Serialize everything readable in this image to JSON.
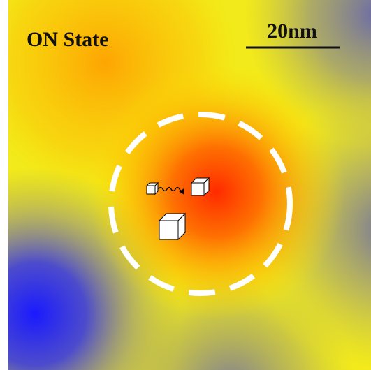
{
  "title": "ON State",
  "scale_bar": {
    "label": "20nm"
  }
}
